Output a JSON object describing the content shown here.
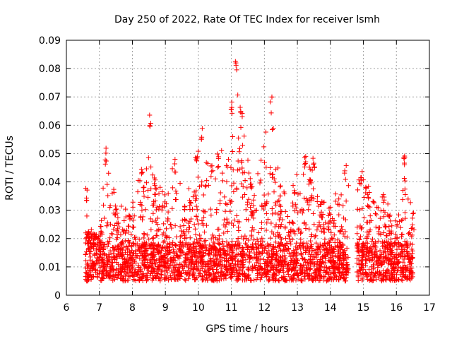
{
  "chart_data": {
    "type": "scatter",
    "title": "Day 250 of 2022, Rate Of TEC Index for receiver lsmh",
    "xlabel": "GPS time / hours",
    "ylabel": "ROTI / TECUs",
    "xlim": [
      6,
      17
    ],
    "ylim": [
      0,
      0.09
    ],
    "xticks": [
      "6",
      "7",
      "8",
      "9",
      "10",
      "11",
      "12",
      "13",
      "14",
      "15",
      "16",
      "17"
    ],
    "yticks": [
      "0",
      "0.01",
      "0.02",
      "0.03",
      "0.04",
      "0.05",
      "0.06",
      "0.07",
      "0.08",
      "0.09"
    ],
    "grid": true,
    "marker": "+",
    "color": "#ff0000",
    "x_range_of_data": [
      6.58,
      16.5
    ],
    "gap": [
      14.55,
      14.8
    ],
    "envelope": {
      "description_points": [
        [
          6.6,
          0.038
        ],
        [
          6.65,
          0.024
        ],
        [
          7.0,
          0.022
        ],
        [
          7.2,
          0.052
        ],
        [
          7.5,
          0.034
        ],
        [
          7.9,
          0.032
        ],
        [
          8.3,
          0.046
        ],
        [
          8.55,
          0.064
        ],
        [
          8.7,
          0.04
        ],
        [
          9.0,
          0.036
        ],
        [
          9.3,
          0.049
        ],
        [
          9.6,
          0.032
        ],
        [
          10.1,
          0.059
        ],
        [
          10.4,
          0.046
        ],
        [
          10.6,
          0.05
        ],
        [
          11.0,
          0.069
        ],
        [
          11.15,
          0.0845
        ],
        [
          11.3,
          0.066
        ],
        [
          11.6,
          0.04
        ],
        [
          12.2,
          0.07
        ],
        [
          12.5,
          0.04
        ],
        [
          12.9,
          0.04
        ],
        [
          13.25,
          0.052
        ],
        [
          13.5,
          0.05
        ],
        [
          13.7,
          0.034
        ],
        [
          14.0,
          0.032
        ],
        [
          14.45,
          0.046
        ],
        [
          14.95,
          0.045
        ],
        [
          15.1,
          0.04
        ],
        [
          15.6,
          0.036
        ],
        [
          16.0,
          0.026
        ],
        [
          16.25,
          0.051
        ],
        [
          16.5,
          0.029
        ]
      ]
    },
    "baseline": [
      0.005,
      0.018
    ]
  }
}
